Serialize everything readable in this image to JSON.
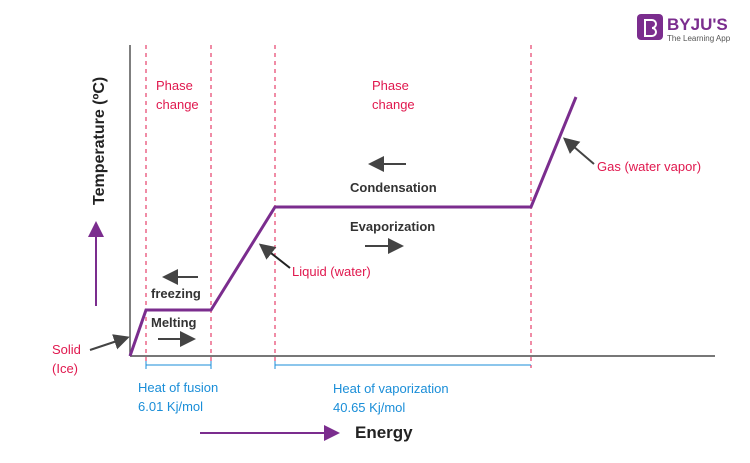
{
  "logo": {
    "brand": "BYJU'S",
    "tagline": "The Learning App",
    "color": "#7b2d8e"
  },
  "axes": {
    "y_label": "Temperature (ºC)",
    "x_label": "Energy"
  },
  "regions": {
    "phase_change_1": [
      "Phase",
      "change"
    ],
    "phase_change_2": [
      "Phase",
      "change"
    ]
  },
  "labels": {
    "solid": [
      "Solid",
      "(Ice)"
    ],
    "liquid": "Liquid (water)",
    "gas": "Gas (water vapor)",
    "freezing": "freezing",
    "melting": "Melting",
    "condensation": "Condensation",
    "evaporization": "Evaporization"
  },
  "heats": {
    "fusion": [
      "Heat of fusion",
      "6.01 Kj/mol"
    ],
    "vaporization": [
      "Heat of vaporization",
      "40.65 Kj/mol"
    ]
  },
  "colors": {
    "curve": "#7b2d8e",
    "phase": "#e0184e",
    "heat": "#1a8ed8",
    "axis": "#777777"
  }
}
